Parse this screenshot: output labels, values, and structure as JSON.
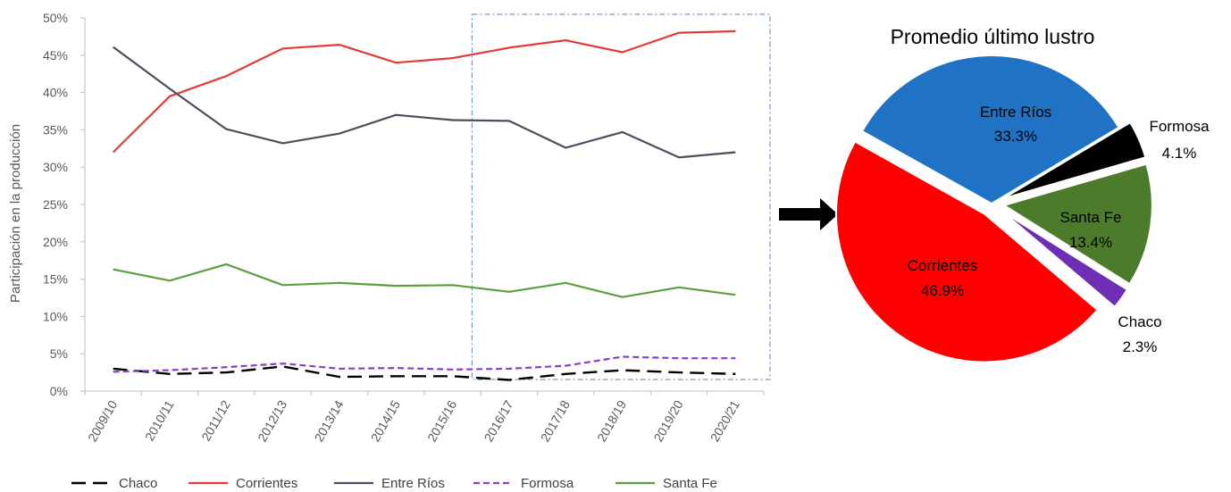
{
  "chart_data": [
    {
      "type": "line",
      "ylabel": "Participación en la producción",
      "ylim": [
        0,
        50
      ],
      "yticks": [
        "0%",
        "5%",
        "10%",
        "15%",
        "20%",
        "25%",
        "30%",
        "35%",
        "40%",
        "45%",
        "50%"
      ],
      "categories": [
        "2009/10",
        "2010/11",
        "2011/12",
        "2012/13",
        "2013/14",
        "2014/15",
        "2015/16",
        "2016/17",
        "2017/18",
        "2018/19",
        "2019/20",
        "2020/21"
      ],
      "highlight_range": [
        "2016/17",
        "2020/21"
      ],
      "legend_position": "bottom",
      "series": [
        {
          "name": "Chaco",
          "color": "#000000",
          "dash": "long-dash",
          "values": [
            3.0,
            2.3,
            2.5,
            3.3,
            1.9,
            2.0,
            2.0,
            1.5,
            2.3,
            2.8,
            2.5,
            2.3
          ]
        },
        {
          "name": "Corrientes",
          "color": "#e03c3c",
          "dash": "solid",
          "values": [
            32.0,
            39.5,
            42.2,
            45.9,
            46.4,
            44.0,
            44.6,
            46.0,
            47.0,
            45.4,
            48.0,
            48.2
          ]
        },
        {
          "name": "Entre Ríos",
          "color": "#4a4f5e",
          "dash": "solid",
          "values": [
            46.1,
            40.5,
            35.1,
            33.2,
            34.5,
            37.0,
            36.3,
            36.2,
            32.6,
            34.7,
            31.3,
            32.0
          ]
        },
        {
          "name": "Formosa",
          "color": "#8a3fc7",
          "dash": "short-dash",
          "values": [
            2.6,
            2.8,
            3.2,
            3.7,
            3.0,
            3.1,
            2.9,
            3.0,
            3.4,
            4.6,
            4.4,
            4.4
          ]
        },
        {
          "name": "Santa Fe",
          "color": "#5aa03c",
          "dash": "solid",
          "values": [
            16.3,
            14.8,
            17.0,
            14.2,
            14.5,
            14.1,
            14.2,
            13.3,
            14.5,
            12.6,
            13.9,
            12.9
          ]
        }
      ]
    },
    {
      "type": "pie",
      "title": "Promedio último lustro",
      "slices": [
        {
          "label": "Entre Ríos",
          "value": 33.3,
          "text": "33.3%",
          "color": "#1f72c4",
          "exploded": false
        },
        {
          "label": "Formosa",
          "value": 4.1,
          "text": "4.1%",
          "color": "#000000",
          "exploded": true
        },
        {
          "label": "Santa Fe",
          "value": 13.4,
          "text": "13.4%",
          "color": "#4c7b2c",
          "exploded": true
        },
        {
          "label": "Chaco",
          "value": 2.3,
          "text": "2.3%",
          "color": "#6e2fb6",
          "exploded": true
        },
        {
          "label": "Corrientes",
          "value": 46.9,
          "text": "46.9%",
          "color": "#ff0000",
          "exploded": true
        }
      ]
    }
  ]
}
